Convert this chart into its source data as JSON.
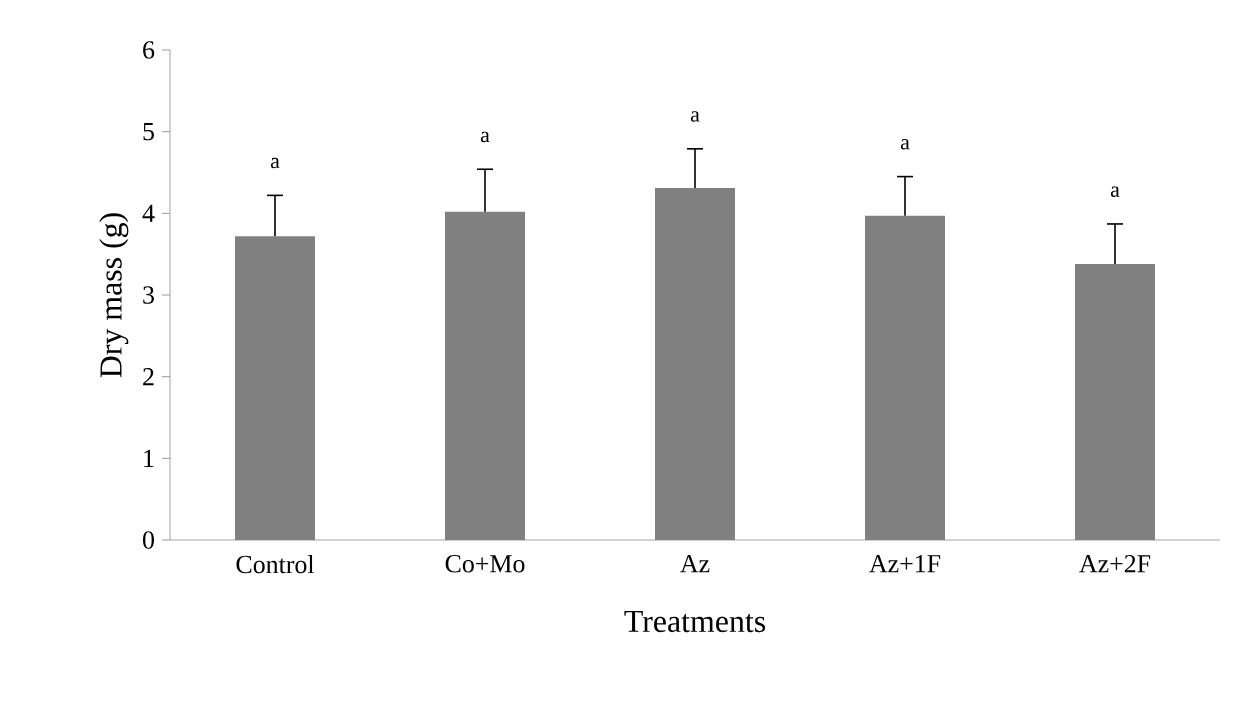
{
  "chart_data": {
    "type": "bar",
    "xlabel": "Treatments",
    "ylabel": "Dry mass (g)",
    "categories": [
      "Control",
      "Co+Mo",
      "Az",
      "Az+1F",
      "Az+2F"
    ],
    "values": [
      3.72,
      4.02,
      4.31,
      3.97,
      3.38
    ],
    "errors": [
      0.5,
      0.52,
      0.48,
      0.48,
      0.49
    ],
    "color": "#808080",
    "ylim": [
      0,
      6
    ],
    "yticks": [
      0,
      1,
      2,
      3,
      4,
      5,
      6
    ],
    "annotations": [
      "a",
      "a",
      "a",
      "a",
      "a"
    ]
  }
}
